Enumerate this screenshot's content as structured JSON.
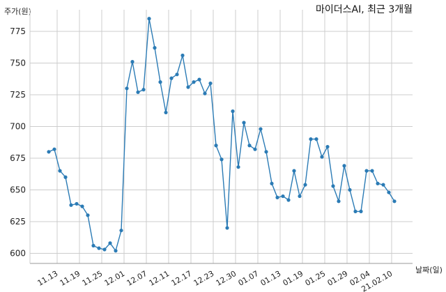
{
  "chart_data": {
    "type": "line",
    "title": "마이더스AI, 최근 3개월",
    "ylabel": "주가(원)",
    "xlabel": "날짜(일)",
    "ylim": [
      592,
      792
    ],
    "yticks": [
      600,
      625,
      650,
      675,
      700,
      725,
      750,
      775
    ],
    "xtick_labels": [
      "11.13",
      "11.19",
      "11.25",
      "12.01",
      "12.07",
      "12.11",
      "12.17",
      "12.23",
      "12.30",
      "01.07",
      "01.13",
      "01.19",
      "01.25",
      "01.29",
      "02.04",
      "21.02.10"
    ],
    "xtick_positions": [
      1.5,
      5.5,
      9.5,
      13.5,
      17.5,
      21.5,
      25.5,
      29.5,
      33.5,
      37.5,
      41.5,
      45.5,
      49.5,
      53.5,
      57.5,
      61.5
    ],
    "grid": true,
    "line_color": "#2b7bb5",
    "series": [
      {
        "values": [
          680,
          682,
          665,
          660,
          638,
          639,
          637,
          630,
          606,
          604,
          603,
          608,
          602,
          618,
          730,
          751,
          727,
          729,
          785,
          762,
          735,
          711,
          738,
          741,
          756,
          731,
          735,
          737,
          726,
          734,
          685,
          674,
          620,
          712,
          668,
          703,
          685,
          682,
          698,
          680,
          655,
          644,
          645,
          642,
          665,
          645,
          654,
          690,
          690,
          676,
          684,
          653,
          641,
          669,
          650,
          633,
          633,
          665,
          665,
          655,
          654,
          648,
          641
        ]
      }
    ]
  }
}
